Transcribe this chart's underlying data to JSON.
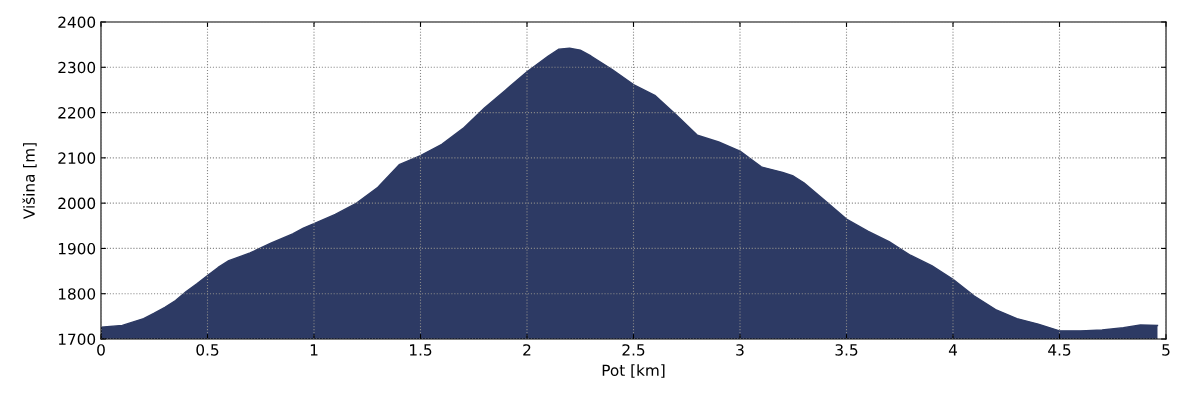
{
  "chart_data": {
    "type": "area",
    "xlabel": "Pot [km]",
    "ylabel": "Višina [m]",
    "xlim": [
      0,
      5
    ],
    "ylim": [
      1700,
      2400
    ],
    "xticks": [
      0,
      0.5,
      1,
      1.5,
      2,
      2.5,
      3,
      3.5,
      4,
      4.5,
      5
    ],
    "yticks": [
      1700,
      1800,
      1900,
      2000,
      2100,
      2200,
      2300,
      2400
    ],
    "grid": true,
    "legend": false,
    "series": [
      {
        "color": "#2d3a64",
        "x": [
          0,
          0.1,
          0.2,
          0.25,
          0.3,
          0.35,
          0.4,
          0.45,
          0.5,
          0.55,
          0.6,
          0.7,
          0.8,
          0.9,
          0.95,
          1.0,
          1.1,
          1.2,
          1.3,
          1.35,
          1.4,
          1.5,
          1.6,
          1.7,
          1.8,
          1.9,
          2.0,
          2.1,
          2.15,
          2.2,
          2.25,
          2.3,
          2.4,
          2.5,
          2.6,
          2.7,
          2.8,
          2.9,
          3.0,
          3.1,
          3.2,
          3.25,
          3.3,
          3.4,
          3.5,
          3.6,
          3.7,
          3.8,
          3.9,
          4.0,
          4.1,
          4.2,
          4.3,
          4.4,
          4.5,
          4.6,
          4.7,
          4.8,
          4.88,
          4.96
        ],
        "values": [
          1726,
          1730,
          1745,
          1757,
          1770,
          1785,
          1805,
          1822,
          1840,
          1858,
          1873,
          1890,
          1912,
          1932,
          1945,
          1955,
          1975,
          2000,
          2035,
          2060,
          2085,
          2105,
          2130,
          2165,
          2210,
          2250,
          2290,
          2325,
          2340,
          2342,
          2338,
          2325,
          2295,
          2262,
          2238,
          2195,
          2150,
          2135,
          2115,
          2080,
          2068,
          2060,
          2045,
          2005,
          1965,
          1938,
          1915,
          1885,
          1862,
          1832,
          1795,
          1765,
          1745,
          1733,
          1718,
          1718,
          1720,
          1725,
          1731,
          1730
        ]
      }
    ]
  }
}
